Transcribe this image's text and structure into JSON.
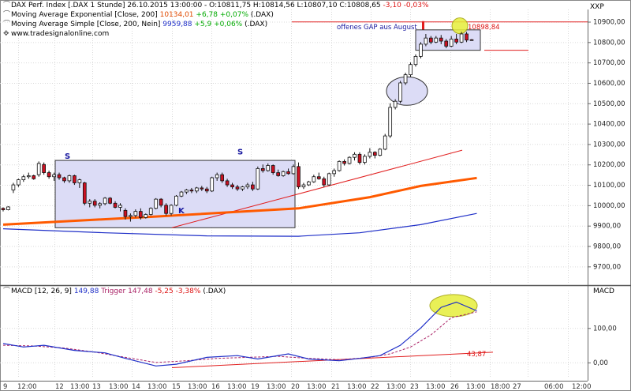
{
  "header": {
    "main": {
      "name": "DAX Perf. Index [.DAX  1 Stunde]",
      "date": "26.10.2015 13:00:00",
      "ohlc": "O:10811,75 H:10814,56 L:10807,10 C:10808,65",
      "change": "-3,10 -0,03%"
    },
    "ema": {
      "name": "Moving Average Exponential [Close, 200]",
      "value": "10134,01",
      "change": "+6,78 +0,07%",
      "symbol": "(.DAX)"
    },
    "sma": {
      "name": "Moving Average Simple [Close, 200, Nein]",
      "value": "9959,88",
      "change": "+5,9 +0,06%",
      "symbol": "(.DAX)"
    },
    "source": "www.tradesignalonline.com"
  },
  "panel_titles": {
    "price": "XXP",
    "macd": "MACD"
  },
  "macd_header": {
    "name": "MACD [12, 26, 9]",
    "value": "149,88",
    "trigger": "Trigger 147,48",
    "change": "-5,25 -3,38%",
    "symbol": "(.DAX)"
  },
  "annotations": {
    "gap_label": "offenes GAP aus August",
    "gap_value": "10898,84",
    "s1": "S",
    "s2": "S",
    "k": "K",
    "macd_trend_value": "43,87"
  },
  "colors": {
    "ema": "#ff5a00",
    "sma": "#1f2fc8",
    "up": "#ffffff",
    "down": "#cc1122",
    "trend": "#e11f1f",
    "box_fill": "#dcdcf6",
    "macd": "#1f2fc8",
    "trigger": "#aa2266",
    "highlight": "#e6ee3a"
  },
  "chart_data": [
    {
      "type": "candlestick",
      "title": "DAX Perf. Index [.DAX 1 Stunde]",
      "ylim": [
        9620,
        10960
      ],
      "yticks": [
        "9700,00",
        "9800,00",
        "9900,00",
        "10000,00",
        "10100,00",
        "10200,00",
        "10300,00",
        "10400,00",
        "10500,00",
        "10600,00",
        "10700,00",
        "10800,00",
        "10900,00"
      ],
      "xticks": [
        "9",
        "12:00",
        "12",
        "13:00",
        "13",
        "13:00",
        "14",
        "13:00",
        "15",
        "13:00",
        "16",
        "13:00",
        "19",
        "13:00",
        "20",
        "13:00",
        "21",
        "13:00",
        "22",
        "13:00",
        "23",
        "13:00",
        "26",
        "13:00",
        "18:00",
        "27",
        "06:00",
        "12:00"
      ],
      "candles": [
        [
          9985,
          9990,
          9970,
          9978
        ],
        [
          9978,
          9995,
          9975,
          9992
        ],
        [
          10075,
          10110,
          10060,
          10100
        ],
        [
          10100,
          10130,
          10090,
          10125
        ],
        [
          10125,
          10150,
          10115,
          10140
        ],
        [
          10140,
          10160,
          10130,
          10145
        ],
        [
          10145,
          10150,
          10125,
          10130
        ],
        [
          10150,
          10215,
          10140,
          10205
        ],
        [
          10200,
          10210,
          10150,
          10160
        ],
        [
          10160,
          10170,
          10130,
          10140
        ],
        [
          10140,
          10160,
          10120,
          10150
        ],
        [
          10150,
          10160,
          10125,
          10135
        ],
        [
          10135,
          10140,
          10110,
          10120
        ],
        [
          10120,
          10150,
          10110,
          10145
        ],
        [
          10145,
          10150,
          10100,
          10110
        ],
        [
          10110,
          10130,
          10085,
          10125
        ],
        [
          10110,
          10115,
          10000,
          10010
        ],
        [
          10010,
          10030,
          9990,
          10020
        ],
        [
          10020,
          10030,
          9990,
          10000
        ],
        [
          10000,
          10015,
          9985,
          10008
        ],
        [
          10008,
          10040,
          10000,
          10035
        ],
        [
          10035,
          10040,
          10005,
          10010
        ],
        [
          10010,
          10020,
          9985,
          9990
        ],
        [
          9990,
          10010,
          9970,
          10000
        ],
        [
          9975,
          9985,
          9930,
          9945
        ],
        [
          9945,
          9960,
          9920,
          9950
        ],
        [
          9950,
          9980,
          9940,
          9970
        ],
        [
          9970,
          9985,
          9930,
          9940
        ],
        [
          9940,
          9960,
          9935,
          9955
        ],
        [
          9955,
          9990,
          9950,
          9985
        ],
        [
          9985,
          10035,
          9980,
          10030
        ],
        [
          10030,
          10035,
          9990,
          10000
        ],
        [
          10000,
          10010,
          9950,
          9960
        ],
        [
          9960,
          10005,
          9950,
          10000
        ],
        [
          10000,
          10050,
          9995,
          10045
        ],
        [
          10045,
          10070,
          10040,
          10065
        ],
        [
          10065,
          10080,
          10055,
          10075
        ],
        [
          10075,
          10085,
          10060,
          10070
        ],
        [
          10070,
          10090,
          10060,
          10085
        ],
        [
          10085,
          10095,
          10070,
          10080
        ],
        [
          10080,
          10090,
          10060,
          10070
        ],
        [
          10070,
          10140,
          10065,
          10135
        ],
        [
          10135,
          10160,
          10120,
          10150
        ],
        [
          10150,
          10160,
          10110,
          10120
        ],
        [
          10120,
          10130,
          10090,
          10100
        ],
        [
          10100,
          10110,
          10080,
          10090
        ],
        [
          10090,
          10100,
          10070,
          10080
        ],
        [
          10080,
          10095,
          10070,
          10090
        ],
        [
          10090,
          10110,
          10080,
          10100
        ],
        [
          10100,
          10115,
          10070,
          10080
        ],
        [
          10080,
          10190,
          10075,
          10180
        ],
        [
          10180,
          10200,
          10160,
          10170
        ],
        [
          10170,
          10205,
          10165,
          10195
        ],
        [
          10195,
          10200,
          10150,
          10160
        ],
        [
          10160,
          10175,
          10140,
          10145
        ],
        [
          10145,
          10170,
          10140,
          10165
        ],
        [
          10165,
          10180,
          10150,
          10155
        ],
        [
          10155,
          10200,
          10150,
          10190
        ],
        [
          10190,
          10210,
          10080,
          10090
        ],
        [
          10090,
          10110,
          10080,
          10100
        ],
        [
          10100,
          10120,
          10095,
          10115
        ],
        [
          10115,
          10150,
          10110,
          10140
        ],
        [
          10140,
          10160,
          10125,
          10130
        ],
        [
          10130,
          10140,
          10090,
          10100
        ],
        [
          10100,
          10160,
          10095,
          10155
        ],
        [
          10155,
          10180,
          10140,
          10170
        ],
        [
          10170,
          10220,
          10165,
          10215
        ],
        [
          10215,
          10225,
          10195,
          10205
        ],
        [
          10205,
          10240,
          10200,
          10235
        ],
        [
          10235,
          10260,
          10220,
          10250
        ],
        [
          10250,
          10260,
          10200,
          10210
        ],
        [
          10210,
          10250,
          10200,
          10240
        ],
        [
          10240,
          10280,
          10230,
          10260
        ],
        [
          10260,
          10265,
          10230,
          10245
        ],
        [
          10245,
          10280,
          10240,
          10275
        ],
        [
          10275,
          10350,
          10270,
          10340
        ],
        [
          10340,
          10500,
          10330,
          10480
        ],
        [
          10480,
          10520,
          10470,
          10510
        ],
        [
          10510,
          10610,
          10500,
          10600
        ],
        [
          10600,
          10650,
          10590,
          10640
        ],
        [
          10640,
          10700,
          10630,
          10690
        ],
        [
          10690,
          10740,
          10680,
          10730
        ],
        [
          10730,
          10800,
          10720,
          10790
        ],
        [
          10790,
          10840,
          10780,
          10820
        ],
        [
          10820,
          10830,
          10790,
          10800
        ],
        [
          10800,
          10830,
          10795,
          10820
        ],
        [
          10820,
          10835,
          10790,
          10805
        ],
        [
          10805,
          10815,
          10770,
          10780
        ],
        [
          10780,
          10830,
          10775,
          10815
        ],
        [
          10815,
          10840,
          10790,
          10800
        ],
        [
          10800,
          10850,
          10795,
          10840
        ],
        [
          10840,
          10850,
          10800,
          10810
        ],
        [
          10811.75,
          10814.56,
          10807.1,
          10808.65
        ]
      ],
      "ema_200": {
        "name": "Moving Average Exponential [Close, 200]",
        "points": [
          [
            0,
            9905
          ],
          [
            30,
            9945
          ],
          [
            58,
            9985
          ],
          [
            72,
            10040
          ],
          [
            82,
            10095
          ],
          [
            93,
            10134
          ]
        ]
      },
      "sma_200": {
        "name": "Moving Average Simple [Close, 200, Nein]",
        "points": [
          [
            0,
            9885
          ],
          [
            20,
            9865
          ],
          [
            40,
            9850
          ],
          [
            58,
            9848
          ],
          [
            70,
            9865
          ],
          [
            82,
            9905
          ],
          [
            93,
            9960
          ]
        ]
      }
    },
    {
      "type": "line",
      "title": "MACD [12, 26, 9]",
      "ylim": [
        -30,
        190
      ],
      "yticks": [
        "0,00",
        "100,00"
      ],
      "series": [
        {
          "name": "MACD",
          "points": [
            [
              0,
              55
            ],
            [
              4,
              45
            ],
            [
              8,
              50
            ],
            [
              14,
              35
            ],
            [
              20,
              28
            ],
            [
              24,
              12
            ],
            [
              30,
              -10
            ],
            [
              34,
              -5
            ],
            [
              40,
              15
            ],
            [
              46,
              20
            ],
            [
              50,
              10
            ],
            [
              56,
              25
            ],
            [
              60,
              10
            ],
            [
              66,
              5
            ],
            [
              70,
              12
            ],
            [
              74,
              20
            ],
            [
              78,
              50
            ],
            [
              82,
              100
            ],
            [
              86,
              160
            ],
            [
              89,
              175
            ],
            [
              93,
              150
            ]
          ]
        },
        {
          "name": "Trigger",
          "points": [
            [
              0,
              50
            ],
            [
              6,
              48
            ],
            [
              12,
              42
            ],
            [
              18,
              30
            ],
            [
              24,
              15
            ],
            [
              30,
              0
            ],
            [
              36,
              5
            ],
            [
              42,
              12
            ],
            [
              48,
              15
            ],
            [
              54,
              18
            ],
            [
              60,
              12
            ],
            [
              66,
              8
            ],
            [
              72,
              15
            ],
            [
              76,
              25
            ],
            [
              80,
              45
            ],
            [
              84,
              80
            ],
            [
              88,
              130
            ],
            [
              93,
              147
            ]
          ]
        }
      ]
    }
  ]
}
